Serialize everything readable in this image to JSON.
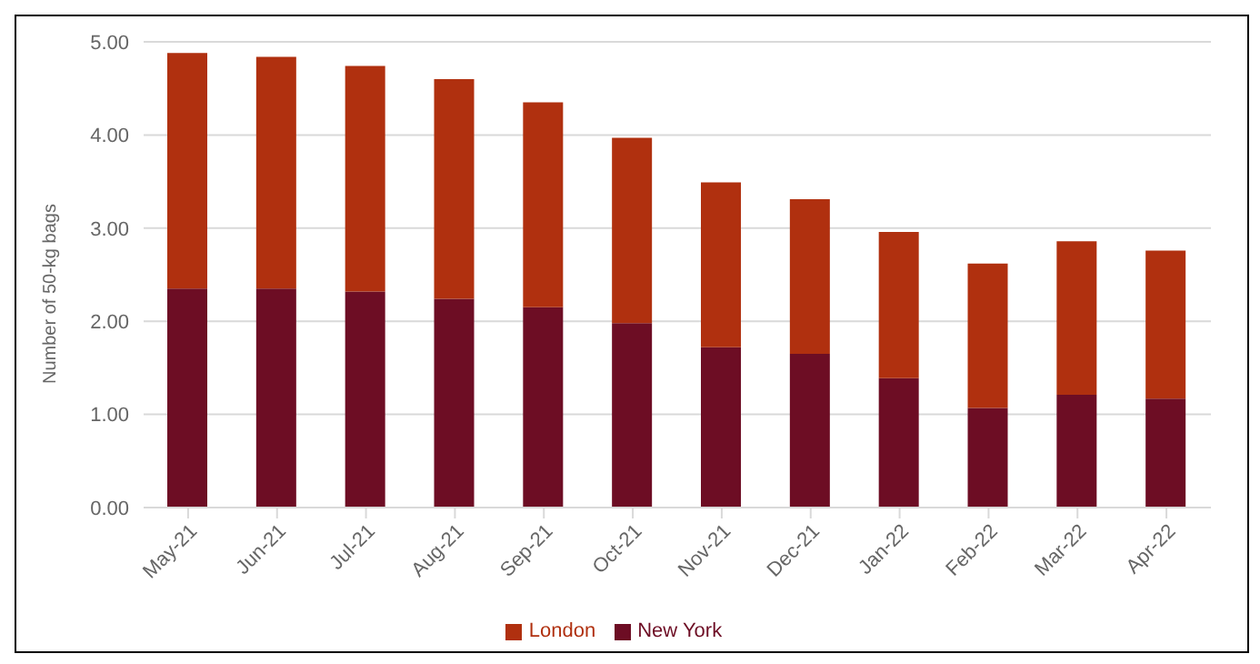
{
  "chart_data": {
    "type": "bar",
    "stacked": true,
    "ylabel": "Number of 50-kg bags",
    "categories": [
      "May-21",
      "Jun-21",
      "Jul-21",
      "Aug-21",
      "Sep-21",
      "Oct-21",
      "Nov-21",
      "Dec-21",
      "Jan-22",
      "Feb-22",
      "Mar-22",
      "Apr-22"
    ],
    "series": [
      {
        "name": "New York",
        "color": "#6d0d24",
        "values": [
          2.35,
          2.35,
          2.32,
          2.24,
          2.15,
          1.98,
          1.72,
          1.65,
          1.39,
          1.07,
          1.21,
          1.17
        ]
      },
      {
        "name": "London",
        "color": "#b0300f",
        "values": [
          2.53,
          2.49,
          2.42,
          2.36,
          2.2,
          1.99,
          1.77,
          1.66,
          1.57,
          1.55,
          1.65,
          1.59
        ]
      }
    ],
    "ylim": [
      0,
      5
    ],
    "yticks": [
      {
        "value": 0,
        "label": "0.00"
      },
      {
        "value": 1,
        "label": "1.00"
      },
      {
        "value": 2,
        "label": "2.00"
      },
      {
        "value": 3,
        "label": "3.00"
      },
      {
        "value": 4,
        "label": "4.00"
      },
      {
        "value": 5,
        "label": "5.00"
      }
    ],
    "grid": "y",
    "legend": "bottom"
  }
}
